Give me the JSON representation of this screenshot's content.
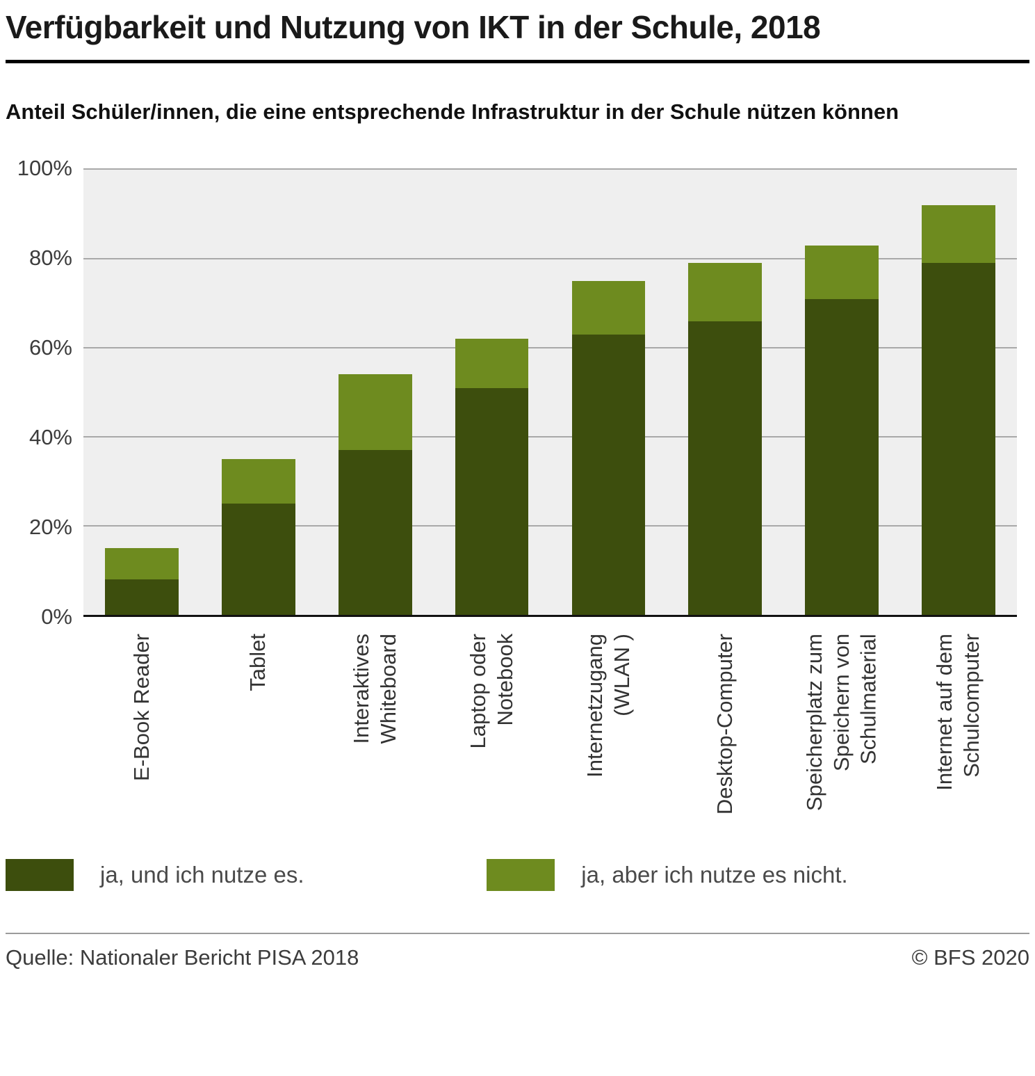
{
  "chart_data": {
    "type": "bar",
    "stacked": true,
    "title": "Verfügbarkeit und Nutzung von IKT in der Schule, 2018",
    "subtitle": "Anteil Schüler/innen, die eine entsprechende Infrastruktur in der Schule nützen können",
    "categories": [
      [
        "E-Book Reader"
      ],
      [
        "Tablet"
      ],
      [
        "Interaktives",
        "Whiteboard"
      ],
      [
        "Laptop oder",
        "Notebook"
      ],
      [
        "Internetzugang",
        "(WLAN )"
      ],
      [
        "Desktop-Computer"
      ],
      [
        "Speicherplatz zum",
        "Speichern von",
        "Schulmaterial"
      ],
      [
        "Internet auf dem",
        "Schulcomputer"
      ]
    ],
    "series": [
      {
        "name": "ja, und ich nutze es.",
        "color": "#3d4e0d",
        "values": [
          8,
          25,
          37,
          51,
          63,
          66,
          71,
          79
        ]
      },
      {
        "name": "ja, aber ich nutze es nicht.",
        "color": "#6e8b1f",
        "values": [
          7,
          10,
          17,
          11,
          12,
          13,
          12,
          13
        ]
      }
    ],
    "totals": [
      15,
      35,
      54,
      62,
      75,
      79,
      83,
      92
    ],
    "ylim": [
      0,
      100
    ],
    "yticks": [
      {
        "value": 0,
        "label": "0%"
      },
      {
        "value": 20,
        "label": "20%"
      },
      {
        "value": 40,
        "label": "40%"
      },
      {
        "value": 60,
        "label": "60%"
      },
      {
        "value": 80,
        "label": "80%"
      },
      {
        "value": 100,
        "label": "100%"
      }
    ],
    "grid": true,
    "legend_position": "bottom",
    "plot_background": "#efefef"
  },
  "footer": {
    "source": "Quelle: Nationaler Bericht PISA 2018",
    "copyright": "© BFS 2020"
  }
}
